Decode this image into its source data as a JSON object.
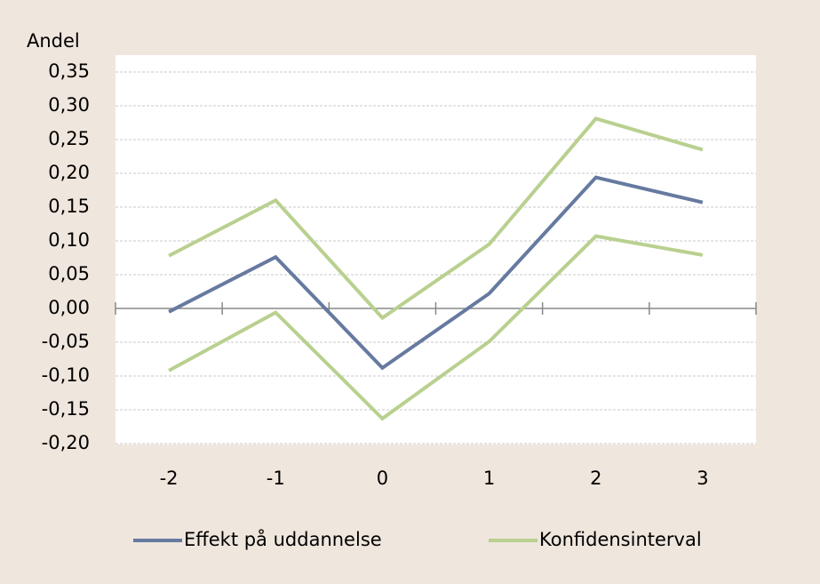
{
  "chart_data": {
    "type": "line",
    "y_axis_label": "Andel",
    "categories": [
      "-2",
      "-1",
      "0",
      "1",
      "2",
      "3"
    ],
    "series": [
      {
        "name": "Effekt på uddannelse",
        "color": "#667aa0",
        "values": [
          -0.005,
          0.076,
          -0.088,
          0.022,
          0.194,
          0.157
        ]
      },
      {
        "name": "Konfidensinterval",
        "color": "#b9d08f",
        "values": [
          0.078,
          0.16,
          -0.014,
          0.095,
          0.281,
          0.235
        ],
        "lower_values": [
          -0.092,
          -0.006,
          -0.163,
          -0.049,
          0.107,
          0.079
        ]
      }
    ],
    "ylim": [
      -0.2,
      0.35
    ],
    "yticks": [
      {
        "value": -0.2,
        "label": "-0,20"
      },
      {
        "value": -0.15,
        "label": "-0,15"
      },
      {
        "value": -0.1,
        "label": "-0,10"
      },
      {
        "value": -0.05,
        "label": "-0,05"
      },
      {
        "value": 0,
        "label": "0,00"
      },
      {
        "value": 0.05,
        "label": "0,05"
      },
      {
        "value": 0.1,
        "label": "0,10"
      },
      {
        "value": 0.15,
        "label": "0,15"
      },
      {
        "value": 0.2,
        "label": "0,20"
      },
      {
        "value": 0.25,
        "label": "0,25"
      },
      {
        "value": 0.3,
        "label": "0,30"
      },
      {
        "value": 0.35,
        "label": "0,35"
      }
    ],
    "grid": true,
    "legend": "bottom"
  }
}
